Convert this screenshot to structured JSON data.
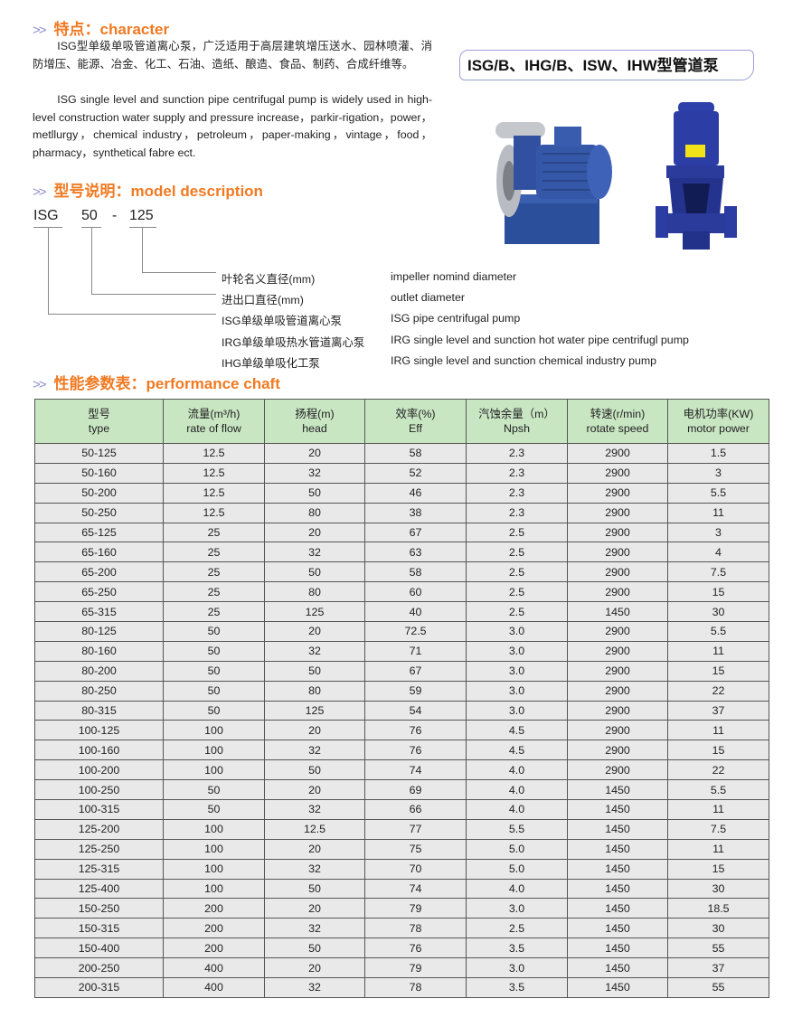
{
  "character": {
    "heading": "特点：character",
    "cn_text": "ISG型单级单吸管道离心泵，广泛适用于高层建筑增压送水、园林喷灌、消防增压、能源、冶金、化工、石油、造纸、酿造、食品、制药、合成纤维等。",
    "en_text": "ISG single level and sunction pipe centrifugal pump is widely used in high-level construction water supply and pressure increase，parkir-rigation，power，metllurgy，chemical industry，petroleum，paper-making，vintage，food，pharmacy，synthetical fabre ect."
  },
  "product_title": "ISG/B、IHG/B、ISW、IHW型管道泵",
  "model_description": {
    "heading": "型号说明：model description",
    "code_parts": [
      "ISG",
      "50",
      "-",
      "125"
    ],
    "legend": [
      {
        "cn": "叶轮名义直径(mm)",
        "en": "impeller nomind diameter"
      },
      {
        "cn": "进出口直径(mm)",
        "en": "outlet diameter"
      },
      {
        "cn": "ISG单级单吸管道离心泵",
        "en": "ISG pipe centrifugal pump"
      },
      {
        "cn": "IRG单级单吸热水管道离心泵",
        "en": "IRG single level and sunction hot water pipe centrifugl pump"
      },
      {
        "cn": "IHG单级单吸化工泵",
        "en": "IRG single level and sunction chemical industry pump"
      }
    ]
  },
  "performance": {
    "heading": "性能参数表：performance chaft",
    "columns": [
      {
        "cn": "型号",
        "en": "type"
      },
      {
        "cn": "流量(m³/h)",
        "en": "rate of flow"
      },
      {
        "cn": "扬程(m)",
        "en": "head"
      },
      {
        "cn": "效率(%)",
        "en": "Eff"
      },
      {
        "cn": "汽蚀余量（m）",
        "en": "Npsh"
      },
      {
        "cn": "转速(r/min)",
        "en": "rotate speed"
      },
      {
        "cn": "电机功率(KW)",
        "en": "motor power"
      }
    ],
    "rows": [
      [
        "50-125",
        "12.5",
        "20",
        "58",
        "2.3",
        "2900",
        "1.5"
      ],
      [
        "50-160",
        "12.5",
        "32",
        "52",
        "2.3",
        "2900",
        "3"
      ],
      [
        "50-200",
        "12.5",
        "50",
        "46",
        "2.3",
        "2900",
        "5.5"
      ],
      [
        "50-250",
        "12.5",
        "80",
        "38",
        "2.3",
        "2900",
        "11"
      ],
      [
        "65-125",
        "25",
        "20",
        "67",
        "2.5",
        "2900",
        "3"
      ],
      [
        "65-160",
        "25",
        "32",
        "63",
        "2.5",
        "2900",
        "4"
      ],
      [
        "65-200",
        "25",
        "50",
        "58",
        "2.5",
        "2900",
        "7.5"
      ],
      [
        "65-250",
        "25",
        "80",
        "60",
        "2.5",
        "2900",
        "15"
      ],
      [
        "65-315",
        "25",
        "125",
        "40",
        "2.5",
        "1450",
        "30"
      ],
      [
        "80-125",
        "50",
        "20",
        "72.5",
        "3.0",
        "2900",
        "5.5"
      ],
      [
        "80-160",
        "50",
        "32",
        "71",
        "3.0",
        "2900",
        "11"
      ],
      [
        "80-200",
        "50",
        "50",
        "67",
        "3.0",
        "2900",
        "15"
      ],
      [
        "80-250",
        "50",
        "80",
        "59",
        "3.0",
        "2900",
        "22"
      ],
      [
        "80-315",
        "50",
        "125",
        "54",
        "3.0",
        "2900",
        "37"
      ],
      [
        "100-125",
        "100",
        "20",
        "76",
        "4.5",
        "2900",
        "11"
      ],
      [
        "100-160",
        "100",
        "32",
        "76",
        "4.5",
        "2900",
        "15"
      ],
      [
        "100-200",
        "100",
        "50",
        "74",
        "4.0",
        "2900",
        "22"
      ],
      [
        "100-250",
        "50",
        "20",
        "69",
        "4.0",
        "1450",
        "5.5"
      ],
      [
        "100-315",
        "50",
        "32",
        "66",
        "4.0",
        "1450",
        "11"
      ],
      [
        "125-200",
        "100",
        "12.5",
        "77",
        "5.5",
        "1450",
        "7.5"
      ],
      [
        "125-250",
        "100",
        "20",
        "75",
        "5.0",
        "1450",
        "11"
      ],
      [
        "125-315",
        "100",
        "32",
        "70",
        "5.0",
        "1450",
        "15"
      ],
      [
        "125-400",
        "100",
        "50",
        "74",
        "4.0",
        "1450",
        "30"
      ],
      [
        "150-250",
        "200",
        "20",
        "79",
        "3.0",
        "1450",
        "18.5"
      ],
      [
        "150-315",
        "200",
        "32",
        "78",
        "2.5",
        "1450",
        "30"
      ],
      [
        "150-400",
        "200",
        "50",
        "76",
        "3.5",
        "1450",
        "55"
      ],
      [
        "200-250",
        "400",
        "20",
        "79",
        "3.0",
        "1450",
        "37"
      ],
      [
        "200-315",
        "400",
        "32",
        "78",
        "3.5",
        "1450",
        "55"
      ]
    ]
  },
  "colors": {
    "heading": "#f07a22",
    "table_header": "#c9e6c3",
    "table_row": "#e9e9e9",
    "pump_blue": "#2f4fa8"
  }
}
